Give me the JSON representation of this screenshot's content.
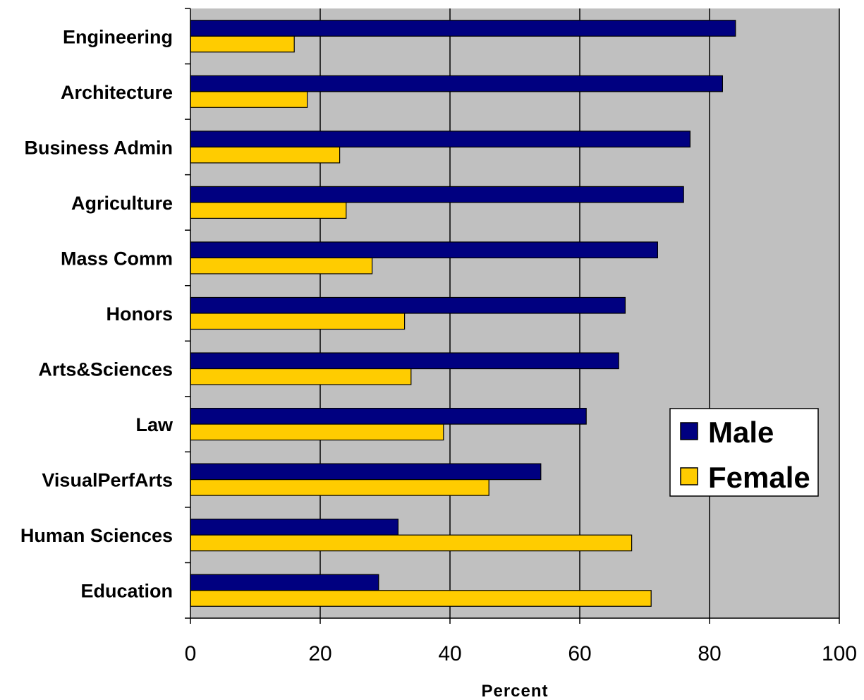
{
  "chart_data": {
    "type": "bar",
    "orientation": "horizontal",
    "title": "",
    "xlabel": "Percent",
    "ylabel": "",
    "xlim": [
      0,
      100
    ],
    "x_ticks": [
      "0",
      "20",
      "40",
      "60",
      "80",
      "100"
    ],
    "grid": "vertical",
    "legend_position": "right",
    "categories": [
      "Engineering",
      "Architecture",
      "Business Admin",
      "Agriculture",
      "Mass Comm",
      "Honors",
      "Arts&Sciences",
      "Law",
      "VisualPerfArts",
      "Human Sciences",
      "Education"
    ],
    "series": [
      {
        "name": "Male",
        "color": "#000080",
        "values": [
          84,
          82,
          77,
          76,
          72,
          67,
          66,
          61,
          54,
          32,
          29
        ]
      },
      {
        "name": "Female",
        "color": "#FFCC00",
        "values": [
          16,
          18,
          23,
          24,
          28,
          33,
          34,
          39,
          46,
          68,
          71
        ]
      }
    ],
    "plot_background": "#C0C0C0"
  }
}
